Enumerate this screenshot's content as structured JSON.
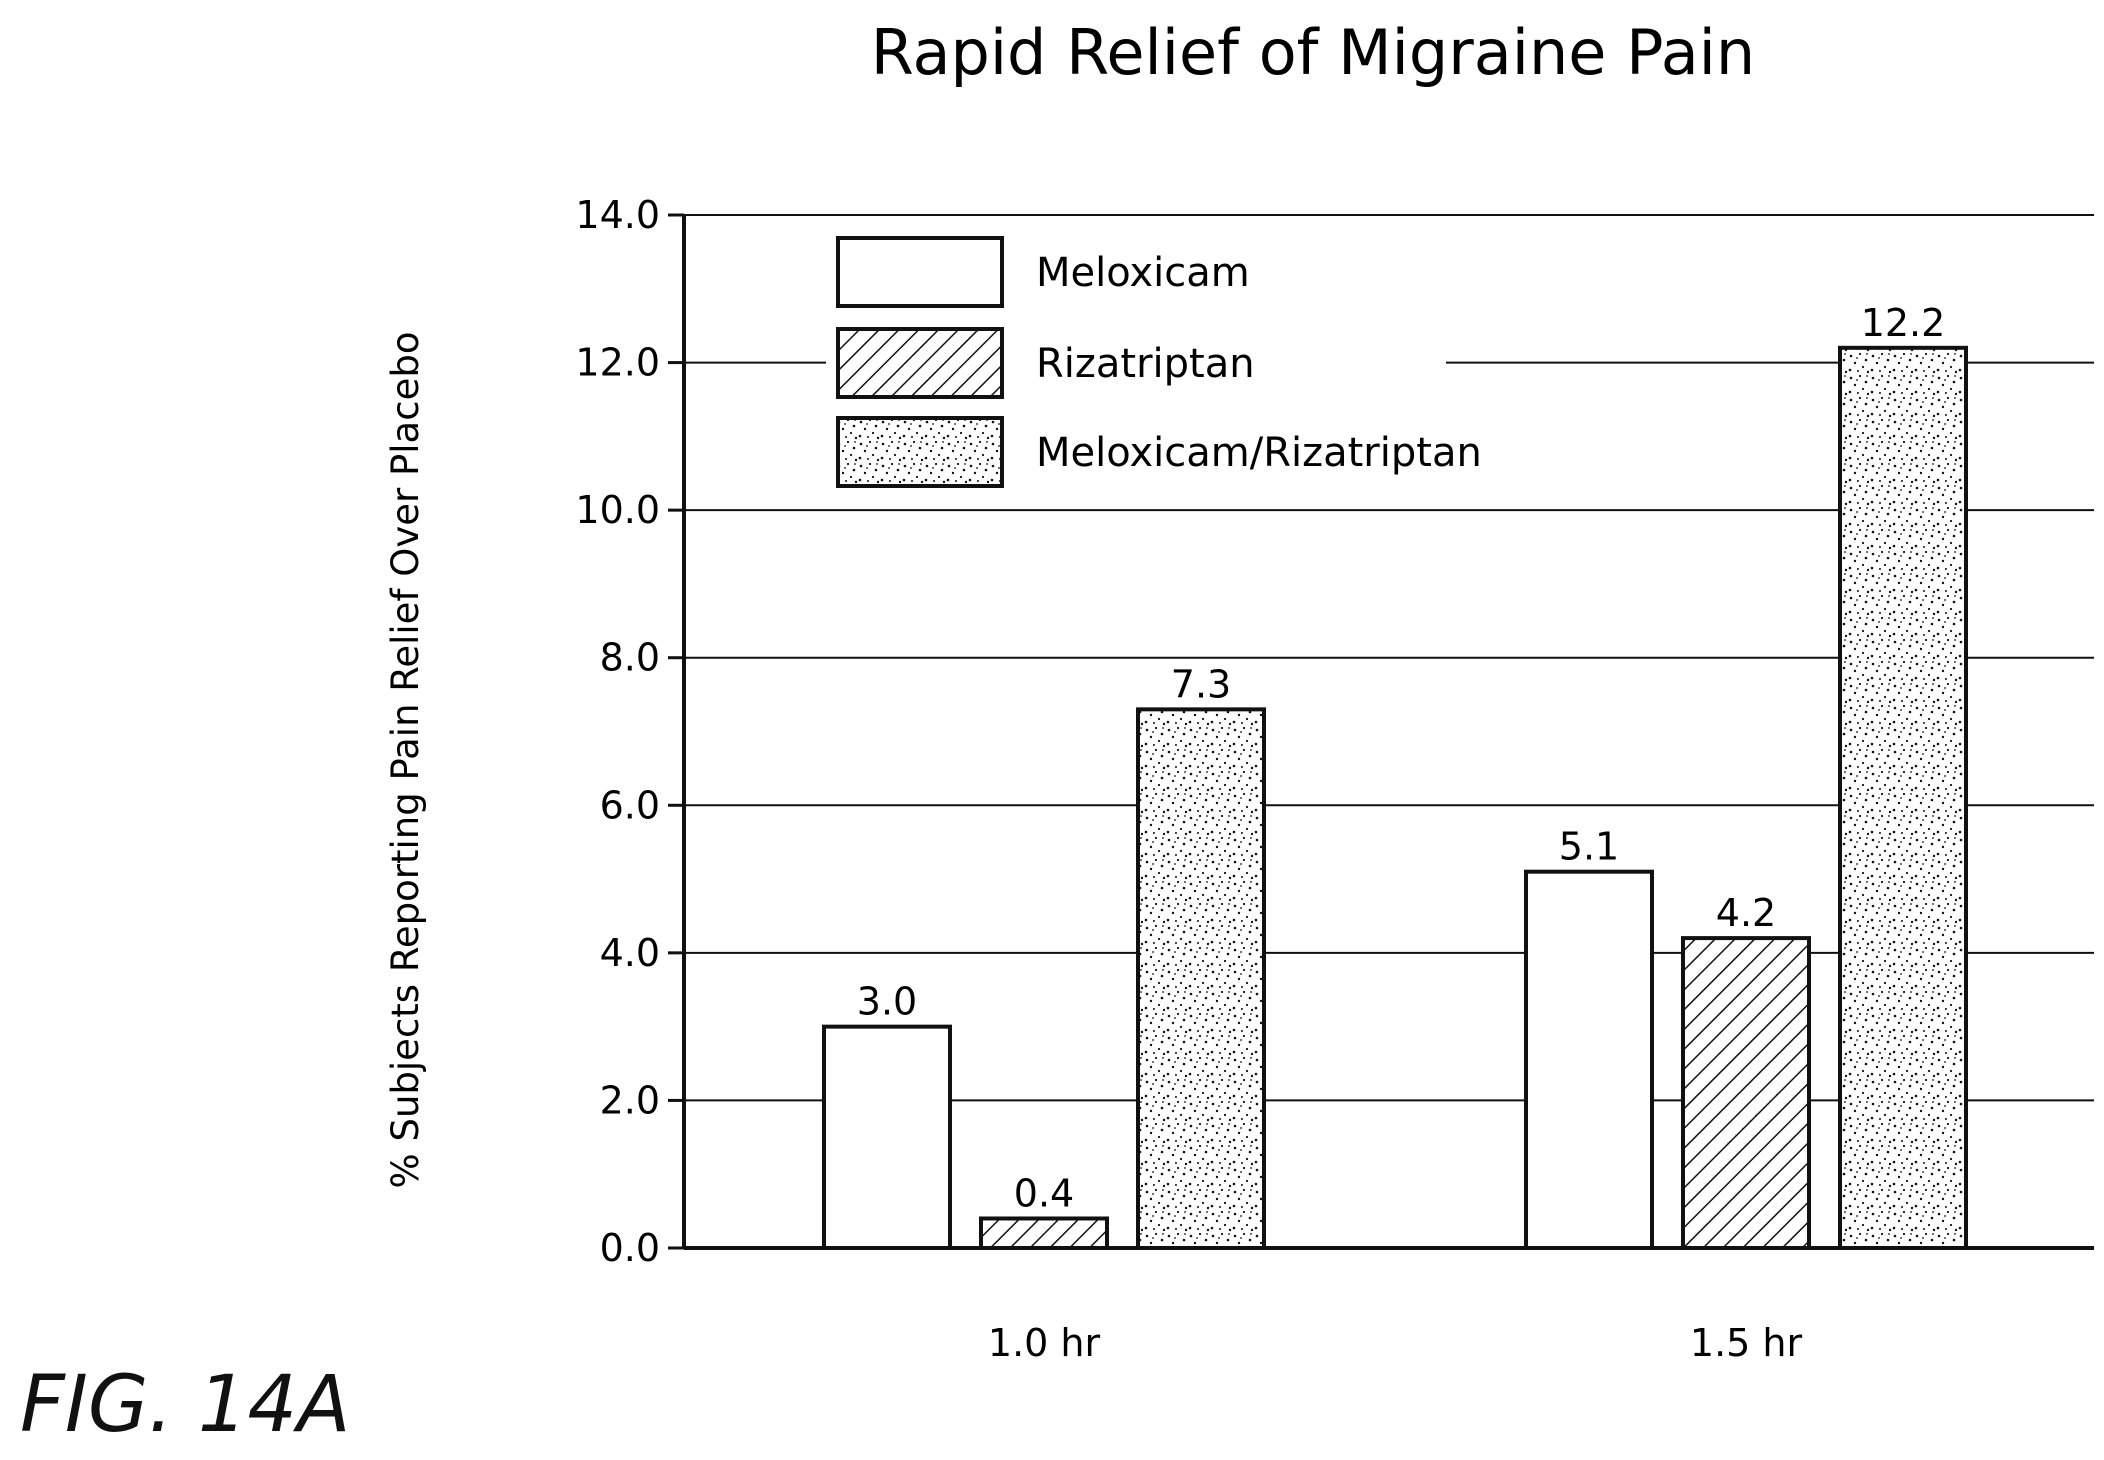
{
  "figure_label": "FIG. 14A",
  "colors": {
    "ink": "#111111",
    "grid": "#111111",
    "bg": "#ffffff"
  },
  "chart_data": {
    "type": "bar",
    "title": "Rapid Relief of Migraine Pain",
    "xlabel": "",
    "ylabel": "% Subjects Reporting Pain Relief Over Placebo",
    "ylim": [
      0,
      14
    ],
    "ytick_labels": [
      "0.0",
      "2.0",
      "4.0",
      "6.0",
      "8.0",
      "10.0",
      "12.0",
      "14.0"
    ],
    "grid": true,
    "legend_position": "top-left",
    "categories": [
      "1.0 hr",
      "1.5 hr"
    ],
    "series": [
      {
        "name": "Meloxicam",
        "fill": "white",
        "values": [
          3.0,
          5.1
        ],
        "labels": [
          "3.0",
          "5.1"
        ]
      },
      {
        "name": "Rizatriptan",
        "fill": "hatch",
        "values": [
          0.4,
          4.2
        ],
        "labels": [
          "0.4",
          "4.2"
        ]
      },
      {
        "name": "Meloxicam/Rizatriptan",
        "fill": "stipple",
        "values": [
          7.3,
          12.2
        ],
        "labels": [
          "7.3",
          "12.2"
        ]
      }
    ]
  }
}
